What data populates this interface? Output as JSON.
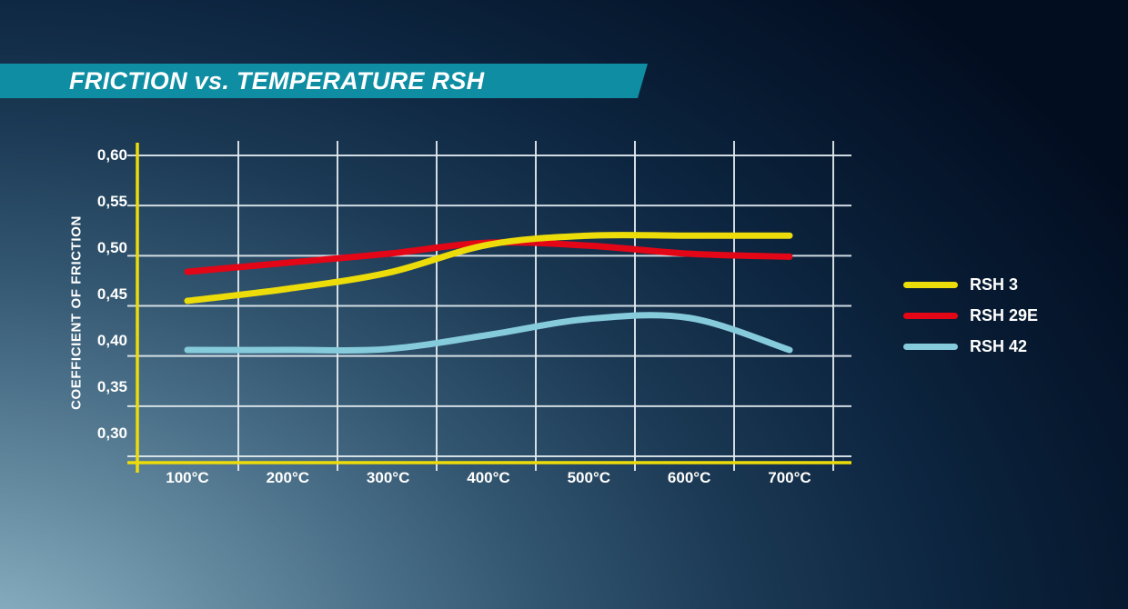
{
  "banner": {
    "title": "FRICTION vs. TEMPERATURE RSH",
    "background_color": "#0e8da3"
  },
  "colors": {
    "axis_yellow": "#ecdc0a",
    "gridline": "#e2eaf0",
    "text": "#ffffff",
    "background_dark": "#030d20",
    "background_light": "#93b7c9"
  },
  "chart_data": {
    "type": "line",
    "title": "FRICTION vs. TEMPERATURE RSH",
    "xlabel": "",
    "ylabel": "COEFFICIENT OF FRICTION",
    "x": [
      100,
      200,
      300,
      400,
      500,
      600,
      700
    ],
    "x_tick_labels": [
      "100°C",
      "200°C",
      "300°C",
      "400°C",
      "500°C",
      "600°C",
      "700°C"
    ],
    "y_ticks": [
      0.6,
      0.55,
      0.5,
      0.45,
      0.4,
      0.35,
      0.3
    ],
    "y_tick_labels": [
      "0,60",
      "0,55",
      "0,50",
      "0,45",
      "0,40",
      "0,35",
      "0,30"
    ],
    "xlim": [
      50,
      762
    ],
    "ylim": [
      0.294,
      0.614
    ],
    "grid": true,
    "grid_note": "white gridlines; vertical gridlines fall midway between temperature labels",
    "legend_position": "right-middle",
    "series": [
      {
        "name": "RSH 3",
        "color": "#ecdc0a",
        "values": [
          0.455,
          0.467,
          0.483,
          0.511,
          0.52,
          0.52,
          0.52
        ]
      },
      {
        "name": "RSH 29E",
        "color": "#e30617",
        "values": [
          0.484,
          0.493,
          0.502,
          0.513,
          0.51,
          0.502,
          0.499
        ]
      },
      {
        "name": "RSH 42",
        "color": "#86cbdc",
        "values": [
          0.406,
          0.406,
          0.407,
          0.421,
          0.437,
          0.438,
          0.406
        ]
      }
    ]
  }
}
